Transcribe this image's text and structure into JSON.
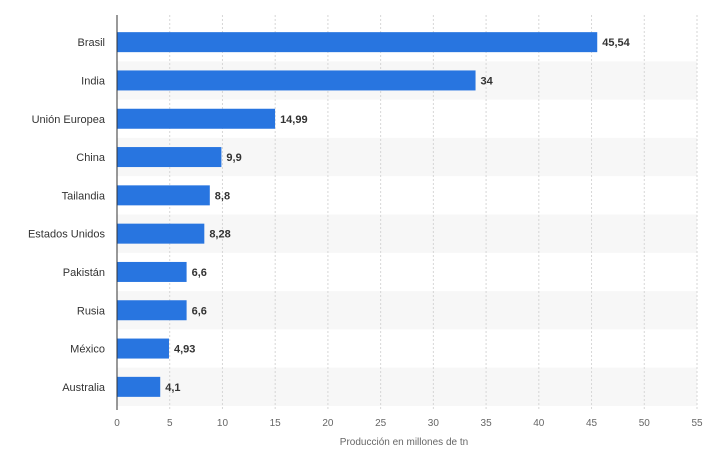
{
  "chart_data": {
    "type": "bar",
    "orientation": "horizontal",
    "categories": [
      "Brasil",
      "India",
      "Unión Europea",
      "China",
      "Tailandia",
      "Estados Unidos",
      "Pakistán",
      "Rusia",
      "México",
      "Australia"
    ],
    "values": [
      45.54,
      34,
      14.99,
      9.9,
      8.8,
      8.28,
      6.6,
      6.6,
      4.93,
      4.1
    ],
    "value_labels": [
      "45,54",
      "34",
      "14,99",
      "9,9",
      "8,8",
      "8,28",
      "6,6",
      "6,6",
      "4,93",
      "4,1"
    ],
    "xlabel": "Producción en millones de tn",
    "ylabel": "",
    "xlim": [
      0,
      55
    ],
    "xticks": [
      0,
      5,
      10,
      15,
      20,
      25,
      30,
      35,
      40,
      45,
      50,
      55
    ],
    "grid": true,
    "legend": "none",
    "colors": {
      "bar": "#2875e0",
      "band": "#f7f7f7",
      "grid": "#d6d6d6",
      "axis": "#333333",
      "label": "#333333",
      "value_label": "#333333",
      "tick": "#666666"
    }
  }
}
